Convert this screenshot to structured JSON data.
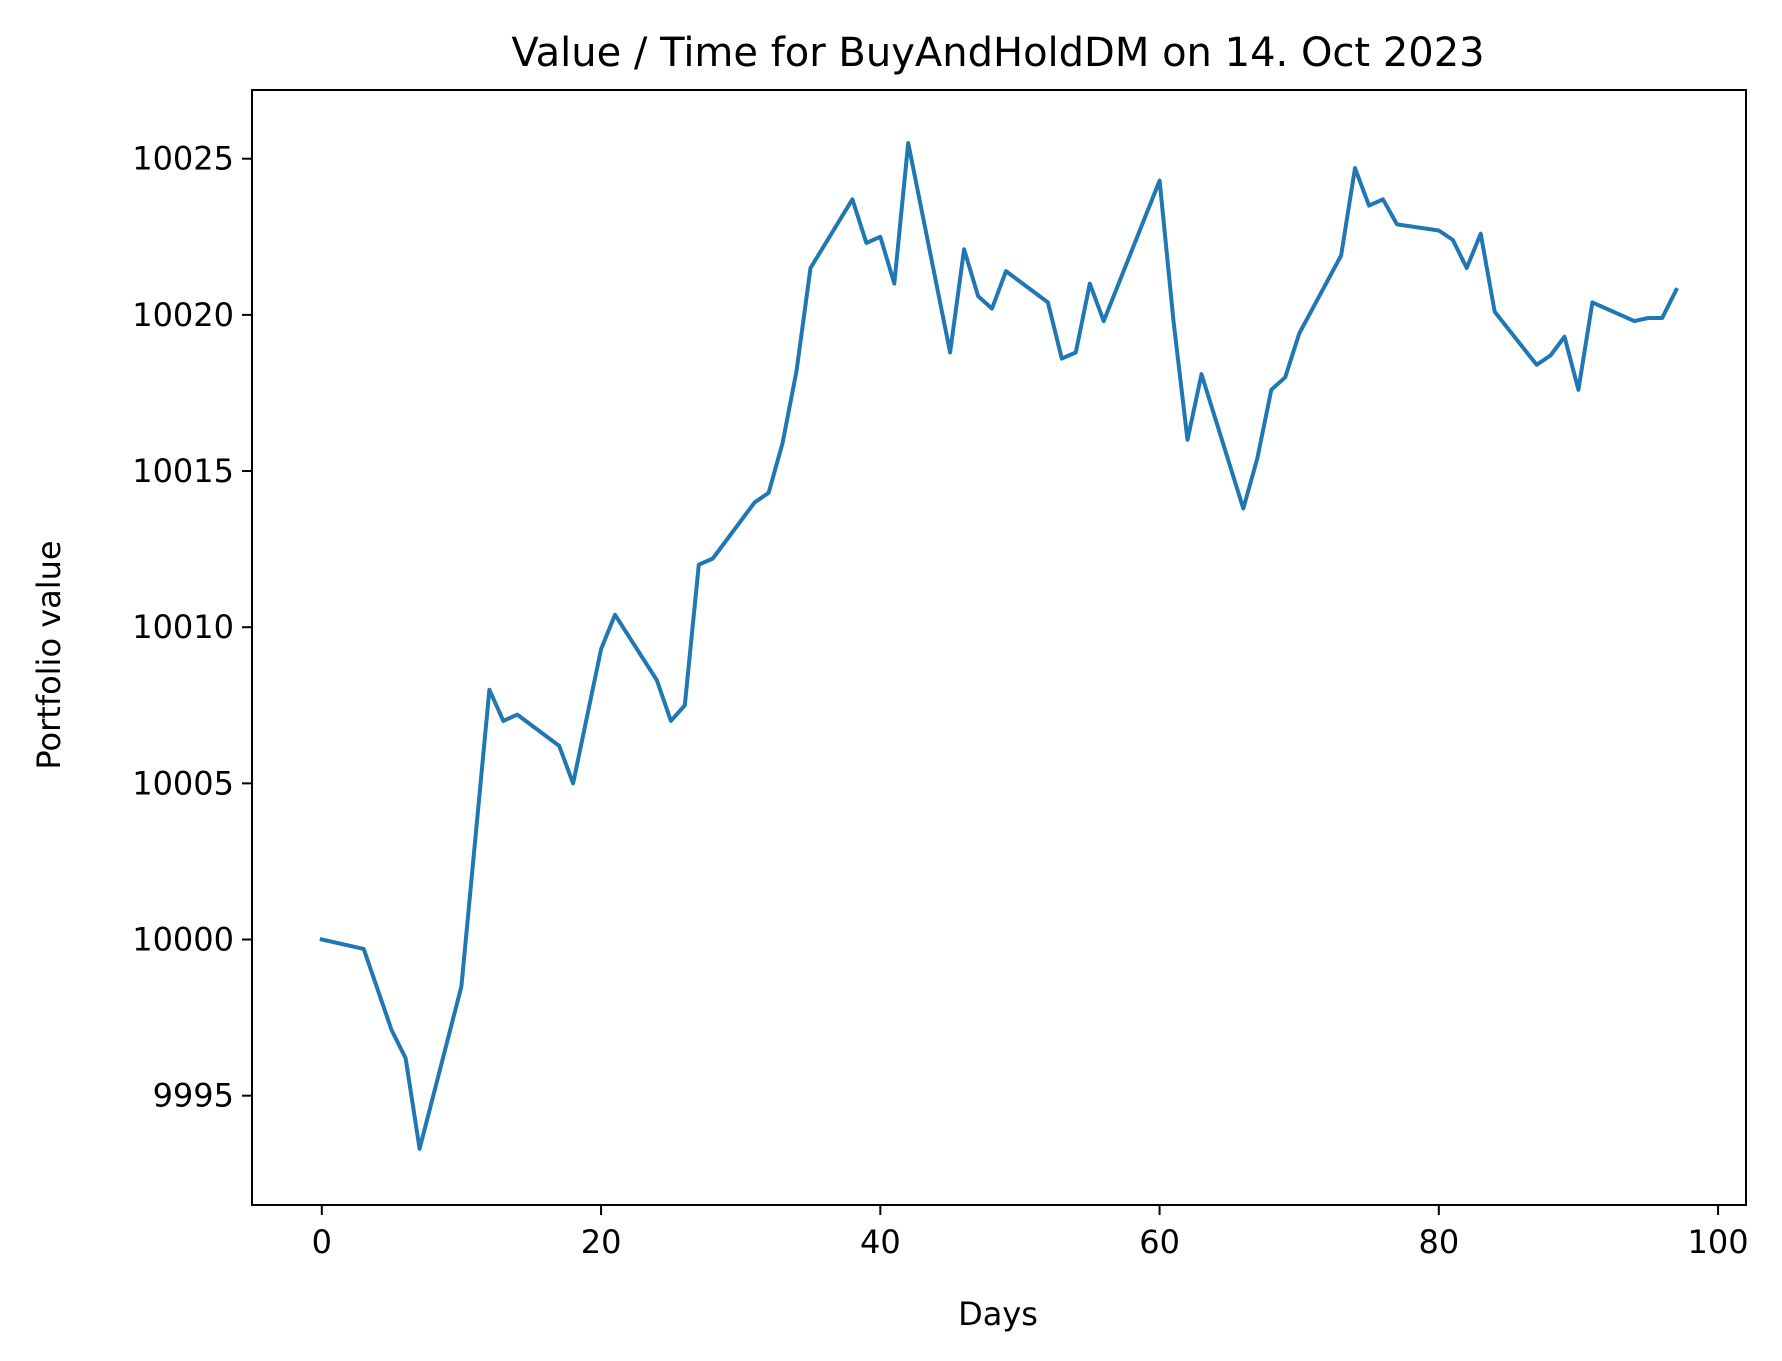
{
  "chart_data": {
    "type": "line",
    "title": "Value / Time for BuyAndHoldDM on 14. Oct 2023",
    "xlabel": "Days",
    "ylabel": "Portfolio value",
    "xlim": [
      -5,
      102
    ],
    "ylim": [
      9991.5,
      10027.2
    ],
    "xticks": [
      0,
      20,
      40,
      60,
      80,
      100
    ],
    "yticks": [
      9995,
      10000,
      10005,
      10010,
      10015,
      10020,
      10025
    ],
    "grid": false,
    "line_color": "#1f77b4",
    "series": [
      {
        "x": [
          0,
          3,
          5,
          6,
          7,
          10,
          12,
          13,
          14,
          17,
          18,
          20,
          21,
          24,
          25,
          26,
          27,
          28,
          31,
          32,
          33,
          34,
          35,
          38,
          39,
          40,
          41,
          42,
          45,
          46,
          47,
          48,
          49,
          52,
          53,
          54,
          55,
          56,
          60,
          61,
          62,
          63,
          66,
          67,
          68,
          69,
          70,
          73,
          74,
          75,
          76,
          77,
          80,
          81,
          82,
          83,
          84,
          87,
          88,
          89,
          90,
          91,
          94,
          95,
          96,
          97
        ],
        "y": [
          10000.0,
          9999.7,
          9997.1,
          9996.2,
          9993.3,
          9998.5,
          10008.0,
          10007.0,
          10007.2,
          10006.2,
          10005.0,
          10009.3,
          10010.4,
          10008.3,
          10007.0,
          10007.5,
          10012.0,
          10012.2,
          10014.0,
          10014.3,
          10015.9,
          10018.2,
          10021.5,
          10023.7,
          10022.3,
          10022.5,
          10021.0,
          10025.5,
          10018.8,
          10022.1,
          10020.6,
          10020.2,
          10021.4,
          10020.4,
          10018.6,
          10018.8,
          10021.0,
          10019.8,
          10024.3,
          10019.8,
          10016.0,
          10018.1,
          10013.8,
          10015.4,
          10017.6,
          10018.0,
          10019.4,
          10021.9,
          10024.7,
          10023.5,
          10023.7,
          10022.9,
          10022.7,
          10022.4,
          10021.5,
          10022.6,
          10020.1,
          10018.4,
          10018.7,
          10019.3,
          10017.6,
          10020.4,
          10019.8,
          10019.9,
          10019.9,
          10020.8
        ]
      }
    ]
  }
}
